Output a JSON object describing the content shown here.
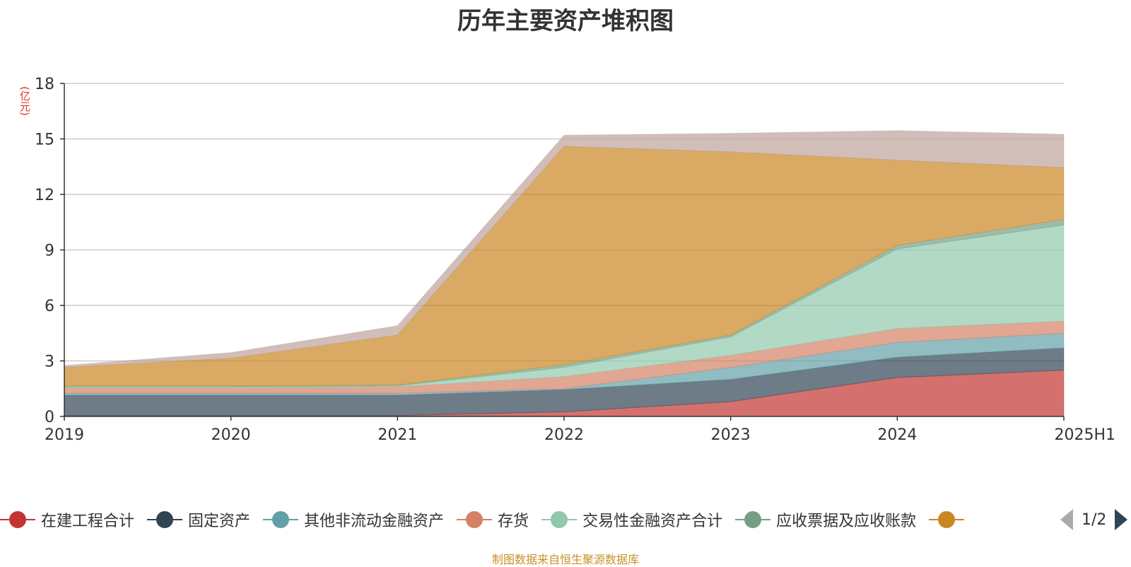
{
  "title": "历年主要资产堆积图",
  "source_note": "制图数据来自恒生聚源数据库",
  "pager": {
    "text": "1/2",
    "prev_icon": "triangle-left-icon",
    "next_icon": "triangle-right-icon"
  },
  "chart_data": {
    "type": "area",
    "stacked": true,
    "title": "历年主要资产堆积图",
    "ylabel": "(亿元)",
    "xlabel": "",
    "categories": [
      "2019",
      "2020",
      "2021",
      "2022",
      "2023",
      "2024",
      "2025H1"
    ],
    "ylim": [
      0,
      18
    ],
    "yticks": [
      0,
      3,
      6,
      9,
      12,
      15,
      18
    ],
    "grid": true,
    "legend_position": "bottom",
    "series": [
      {
        "name": "在建工程合计",
        "color": "#c23531",
        "values": [
          0.05,
          0.05,
          0.05,
          0.25,
          0.8,
          2.1,
          2.5
        ]
      },
      {
        "name": "固定资产",
        "color": "#2f4554",
        "values": [
          1.1,
          1.1,
          1.1,
          1.2,
          1.2,
          1.1,
          1.2
        ]
      },
      {
        "name": "其他非流动金融资产",
        "color": "#61a0a8",
        "values": [
          0.1,
          0.1,
          0.1,
          0.05,
          0.65,
          0.8,
          0.8
        ]
      },
      {
        "name": "存货",
        "color": "#d48265",
        "values": [
          0.3,
          0.3,
          0.35,
          0.65,
          0.65,
          0.75,
          0.65
        ]
      },
      {
        "name": "交易性金融资产合计",
        "color": "#91c7ae",
        "values": [
          0.05,
          0.05,
          0.05,
          0.5,
          1.0,
          4.3,
          5.2
        ]
      },
      {
        "name": "应收票据及应收账款",
        "color": "#749f83",
        "values": [
          0.05,
          0.05,
          0.05,
          0.15,
          0.1,
          0.2,
          0.3
        ]
      },
      {
        "name": "",
        "color": "#ca8622",
        "values": [
          1.0,
          1.5,
          2.7,
          11.8,
          9.9,
          4.6,
          2.8
        ]
      },
      {
        "name": "",
        "color": "#bda29a",
        "values": [
          0.1,
          0.3,
          0.5,
          0.6,
          1.0,
          1.6,
          1.8
        ]
      }
    ]
  }
}
